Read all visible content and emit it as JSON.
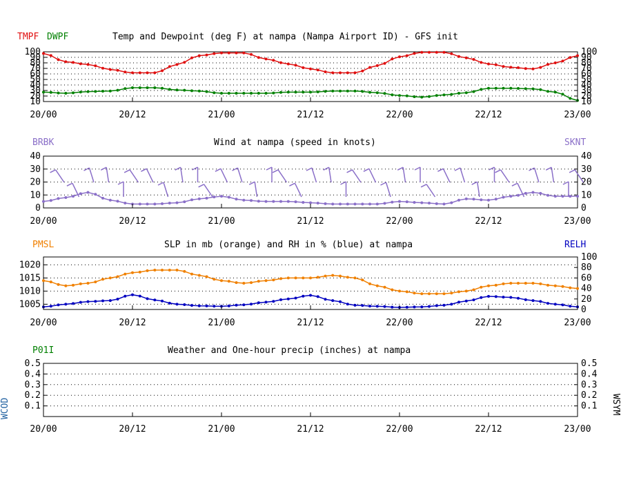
{
  "colors": {
    "tmpf": "#e01010",
    "dwpf": "#008000",
    "wind": "#8a6fc8",
    "slp": "#f08000",
    "rh": "#0000c0",
    "p01i": "#008000",
    "wcod": "#2060a0"
  },
  "x_ticks": [
    "20/00",
    "20/12",
    "21/00",
    "21/12",
    "22/00",
    "22/12",
    "23/00"
  ],
  "panel1": {
    "title": "Temp and Dewpoint (deg F) at nampa (Nampa Airport ID) - GFS init",
    "label_tmpf": "TMPF",
    "label_dwpf": "DWPF",
    "ytick_labels": [
      "100",
      "90",
      "80",
      "70",
      "60",
      "50",
      "40",
      "30",
      "20",
      "10"
    ]
  },
  "panel2": {
    "title": "Wind at  nampa (speed in knots)",
    "label_left": "BRBK",
    "label_right": "SKNT",
    "ytick_labels": [
      "40",
      "30",
      "20",
      "10",
      "0"
    ]
  },
  "panel3": {
    "title": "SLP in mb (orange) and RH in % (blue) at  nampa",
    "label_left": "PMSL",
    "label_right": "RELH",
    "ytick_left_labels": [
      "1020",
      "1015",
      "1010",
      "1005"
    ],
    "ytick_right_labels": [
      "100",
      "80",
      "60",
      "40",
      "20",
      "0"
    ]
  },
  "panel4": {
    "title": "Weather and One-hour precip (inches) at  nampa",
    "label_left": "P01I",
    "label_side_left": "WCOD",
    "label_side_right": "WSYM",
    "ytick_labels": [
      "0.5",
      "0.4",
      "0.3",
      "0.2",
      "0.1"
    ]
  },
  "chart_data": [
    {
      "type": "line",
      "title": "Temp and Dewpoint (deg F) at nampa (Nampa Airport ID) - GFS init",
      "x_range_hours": [
        0,
        72
      ],
      "ylim": [
        10,
        100
      ],
      "series": [
        {
          "name": "TMPF",
          "x": [
            0,
            3,
            6,
            9,
            12,
            15,
            18,
            21,
            24,
            27,
            30,
            33,
            36,
            39,
            42,
            45,
            48,
            51,
            54,
            57,
            60,
            63,
            66,
            69,
            72
          ],
          "values": [
            97,
            82,
            77,
            68,
            62,
            62,
            77,
            93,
            98,
            98,
            87,
            78,
            69,
            62,
            62,
            75,
            91,
            99,
            99,
            89,
            78,
            72,
            69,
            80,
            93
          ]
        },
        {
          "name": "DWPF",
          "x": [
            0,
            3,
            6,
            9,
            12,
            15,
            18,
            21,
            24,
            27,
            30,
            33,
            36,
            39,
            42,
            45,
            48,
            51,
            54,
            57,
            60,
            63,
            66,
            69,
            72
          ],
          "values": [
            27,
            25,
            28,
            29,
            35,
            35,
            31,
            29,
            25,
            25,
            25,
            27,
            27,
            29,
            29,
            26,
            21,
            18,
            22,
            26,
            34,
            34,
            33,
            27,
            12
          ]
        }
      ]
    },
    {
      "type": "line",
      "title": "Wind at  nampa (speed in knots)",
      "x_range_hours": [
        0,
        72
      ],
      "ylim": [
        0,
        40
      ],
      "series": [
        {
          "name": "SKNT",
          "x": [
            0,
            3,
            6,
            9,
            12,
            15,
            18,
            21,
            24,
            27,
            30,
            33,
            36,
            39,
            42,
            45,
            48,
            51,
            54,
            57,
            60,
            63,
            66,
            69,
            72
          ],
          "values": [
            5,
            8,
            12,
            6,
            3,
            3,
            4,
            7,
            9,
            6,
            5,
            5,
            4,
            3,
            3,
            3,
            5,
            4,
            3,
            7,
            6,
            9,
            12,
            9,
            9
          ]
        }
      ]
    },
    {
      "type": "line",
      "title": "SLP in mb (orange) and RH in % (blue) at  nampa",
      "x_range_hours": [
        0,
        72
      ],
      "ylim": [
        1003,
        1023
      ],
      "ylim_right": [
        0,
        100
      ],
      "series": [
        {
          "name": "PMSL",
          "axis": "left",
          "x": [
            0,
            3,
            6,
            9,
            12,
            15,
            18,
            21,
            24,
            27,
            30,
            33,
            36,
            39,
            42,
            45,
            48,
            51,
            54,
            57,
            60,
            63,
            66,
            69,
            72
          ],
          "values": [
            1014,
            1012,
            1013,
            1015,
            1017,
            1018,
            1018,
            1016,
            1014,
            1013,
            1014,
            1015,
            1015,
            1016,
            1015,
            1012,
            1010,
            1009,
            1009,
            1010,
            1012,
            1013,
            1013,
            1012,
            1011
          ]
        },
        {
          "name": "RELH",
          "axis": "right",
          "x": [
            0,
            3,
            6,
            9,
            12,
            15,
            18,
            21,
            24,
            27,
            30,
            33,
            36,
            39,
            42,
            45,
            48,
            51,
            54,
            57,
            60,
            63,
            66,
            69,
            72
          ],
          "values": [
            5,
            10,
            15,
            17,
            28,
            18,
            10,
            7,
            6,
            9,
            14,
            20,
            27,
            17,
            8,
            6,
            4,
            5,
            8,
            16,
            25,
            23,
            17,
            10,
            5
          ]
        }
      ]
    },
    {
      "type": "line",
      "title": "Weather and One-hour precip (inches) at  nampa",
      "x_range_hours": [
        0,
        72
      ],
      "ylim": [
        0,
        0.5
      ],
      "series": [
        {
          "name": "P01I",
          "x": [],
          "values": []
        }
      ]
    }
  ]
}
